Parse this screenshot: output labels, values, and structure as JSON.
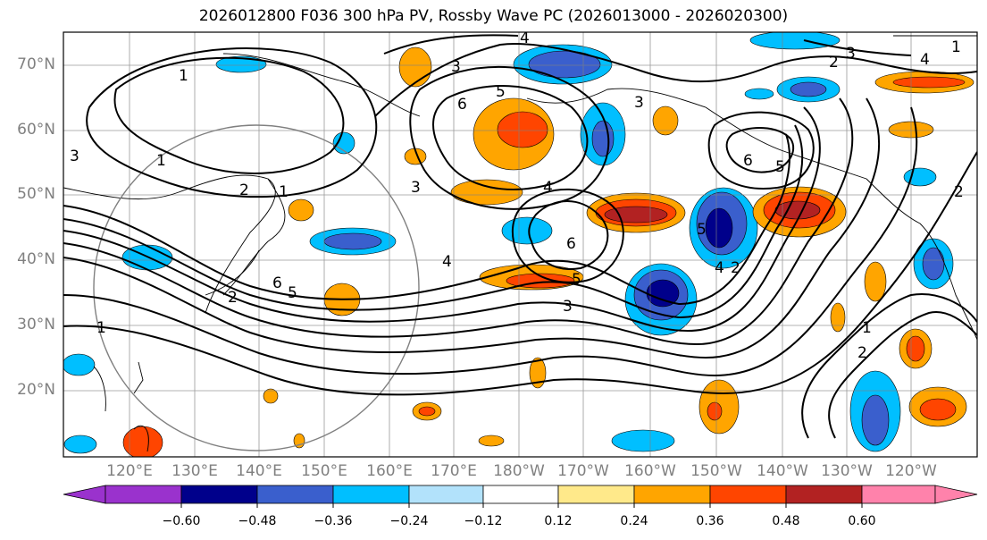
{
  "title": "2026012800 F036 300 hPa PV, Rossby Wave PC (2026013000 - 2026020300)",
  "lat_labels": [
    "70°N",
    "60°N",
    "50°N",
    "40°N",
    "30°N",
    "20°N"
  ],
  "lon_labels": [
    "120°E",
    "130°E",
    "140°E",
    "150°E",
    "160°E",
    "170°E",
    "180°W",
    "170°W",
    "160°W",
    "150°W",
    "140°W",
    "130°W",
    "120°W"
  ],
  "colorbar": {
    "ticks": [
      "−0.60",
      "−0.48",
      "−0.36",
      "−0.24",
      "−0.12",
      "0.12",
      "0.24",
      "0.36",
      "0.48",
      "0.60"
    ],
    "colors": [
      "#9a32cd",
      "#00008b",
      "#3a5fcd",
      "#00bfff",
      "#b2e2fb",
      "#ffffff",
      "#ffe98a",
      "#ffa500",
      "#ff4500",
      "#b22222",
      "#ff82ab"
    ]
  },
  "contour_labels": [
    "1",
    "2",
    "3",
    "4",
    "5",
    "6",
    "5",
    "4",
    "3",
    "2",
    "1",
    "6",
    "5",
    "4",
    "3",
    "2",
    "1",
    "6",
    "5",
    "2",
    "1",
    "6",
    "5",
    "4",
    "3",
    "2",
    "1",
    "4",
    "3",
    "3",
    "1",
    "2"
  ]
}
